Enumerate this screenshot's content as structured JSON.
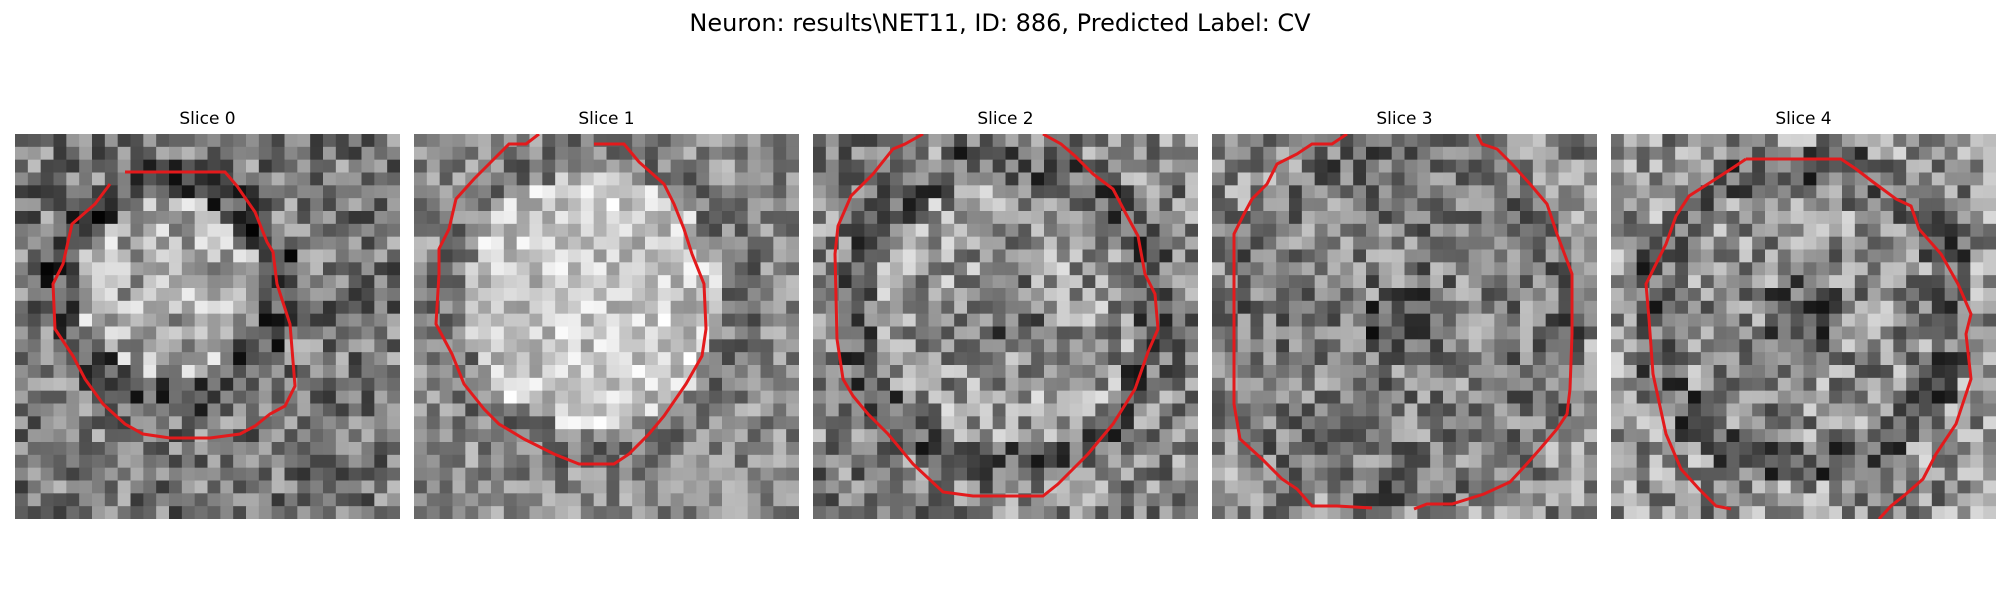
{
  "figure": {
    "title": "Neuron: results\\NET11, ID: 886, Predicted Label: CV"
  },
  "overlay_color": "#e31a1c",
  "colormap": "grayscale",
  "grid_size": 30,
  "panels": [
    {
      "title": "Slice 0"
    },
    {
      "title": "Slice 1"
    },
    {
      "title": "Slice 2"
    },
    {
      "title": "Slice 3"
    },
    {
      "title": "Slice 4"
    }
  ]
}
